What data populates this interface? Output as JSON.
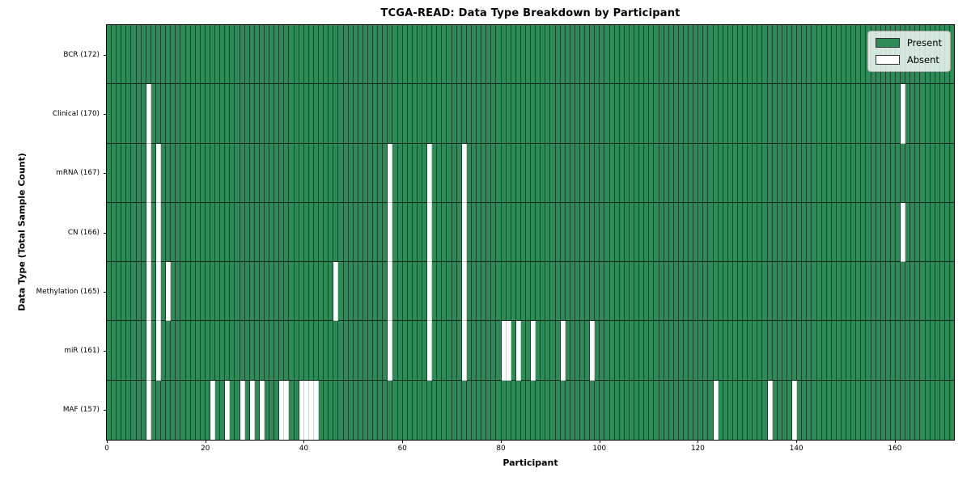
{
  "chart_data": {
    "type": "heatmap",
    "title": "TCGA-READ: Data Type Breakdown by Participant",
    "xlabel": "Participant",
    "ylabel": "Data Type (Total Sample Count)",
    "x_range": [
      0,
      172
    ],
    "x_ticks": [
      0,
      20,
      40,
      60,
      80,
      100,
      120,
      140,
      160
    ],
    "n_participants": 172,
    "grid": true,
    "legend_position": "upper right",
    "colors": {
      "present": "#2e8b57",
      "absent": "#ffffff"
    },
    "legend": [
      {
        "label": "Present",
        "key": "present"
      },
      {
        "label": "Absent",
        "key": "absent"
      }
    ],
    "rows": [
      {
        "label": "BCR (172)",
        "total": 172,
        "absent": []
      },
      {
        "label": "Clinical (170)",
        "total": 170,
        "absent": [
          8,
          161
        ]
      },
      {
        "label": "mRNA (167)",
        "total": 167,
        "absent": [
          8,
          10,
          57,
          65,
          72
        ]
      },
      {
        "label": "CN (166)",
        "total": 166,
        "absent": [
          8,
          10,
          57,
          65,
          72,
          161
        ]
      },
      {
        "label": "Methylation (165)",
        "total": 165,
        "absent": [
          8,
          10,
          12,
          46,
          57,
          65,
          72
        ]
      },
      {
        "label": "miR (161)",
        "total": 161,
        "absent": [
          8,
          10,
          57,
          65,
          72,
          80,
          81,
          83,
          86,
          92,
          98
        ]
      },
      {
        "label": "MAF (157)",
        "total": 157,
        "absent": [
          8,
          21,
          24,
          27,
          29,
          31,
          35,
          36,
          39,
          40,
          41,
          42,
          123,
          134,
          139
        ]
      }
    ]
  }
}
